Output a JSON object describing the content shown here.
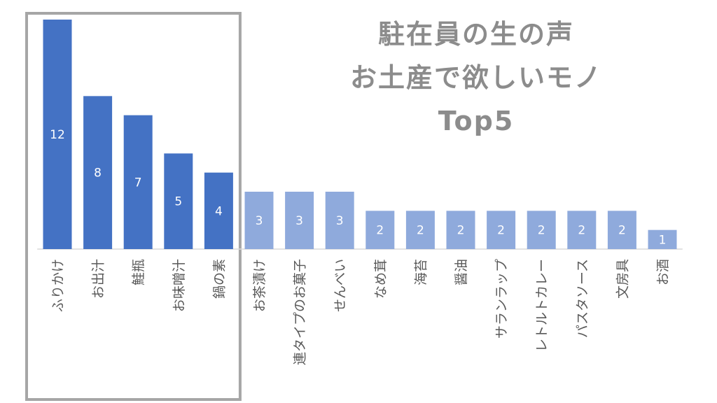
{
  "chart_data": {
    "type": "bar",
    "title_lines": [
      "駐在員の生の声",
      "お土産で欲しいモノ",
      "Top5"
    ],
    "categories": [
      "ふりかけ",
      "お出汁",
      "鮭瓶",
      "お味噌汁",
      "鍋の素",
      "お茶漬け",
      "連タイプのお菓子",
      "せんべい",
      "なめ茸",
      "海苔",
      "醤油",
      "サランラップ",
      "レトルトカレー",
      "パスタソース",
      "文房具",
      "お酒"
    ],
    "values": [
      12,
      8,
      7,
      5,
      4,
      3,
      3,
      3,
      2,
      2,
      2,
      2,
      2,
      2,
      2,
      1
    ],
    "data_labels": [
      "12",
      "8",
      "7",
      "5",
      "4",
      "3",
      "3",
      "3",
      "2",
      "2",
      "2",
      "2",
      "2",
      "2",
      "2",
      "1"
    ],
    "top_n": 5,
    "ylim": [
      0,
      12
    ],
    "grid": false,
    "xlabel": "",
    "ylabel": "",
    "colors": {
      "top_bar": "#4472c4",
      "other_bar": "#8faadc",
      "highlight_box": "#a6a6a6",
      "title": "#8c8c8c",
      "axis": "#d9d9d9",
      "category_label": "#595959"
    }
  }
}
